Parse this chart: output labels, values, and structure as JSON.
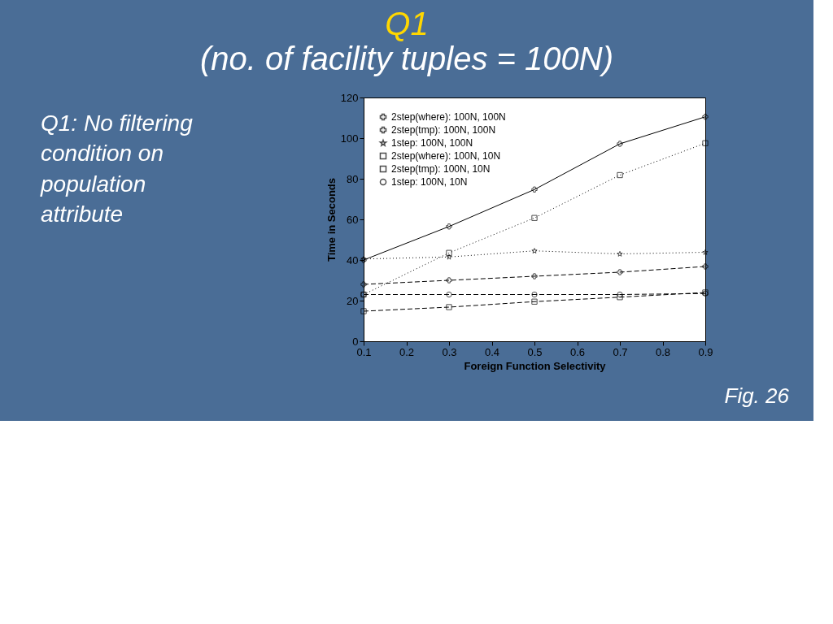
{
  "chart_data": {
    "type": "line",
    "title": "Q1",
    "subtitle": "(no. of facility tuples = 100N)",
    "xlabel": "Foreign Function Selectivity",
    "ylabel": "Time in Seconds",
    "x": [
      0.1,
      0.3,
      0.5,
      0.7,
      0.9
    ],
    "series": [
      {
        "name": "2step(where): 100N, 100N",
        "color": "#000000",
        "marker": "cross",
        "line_style": "solid",
        "values": [
          40,
          56.5,
          74.7,
          97.2,
          110.5
        ]
      },
      {
        "name": "2step(tmp): 100N, 100N",
        "color": "#000000",
        "marker": "cross",
        "line_style": "dashed",
        "values": [
          28,
          30,
          32,
          34,
          36.8
        ]
      },
      {
        "name": "1step: 100N, 100N",
        "color": "#000000",
        "marker": "star",
        "line_style": "dotted",
        "values": [
          40.5,
          41.5,
          44.5,
          43,
          43.8
        ]
      },
      {
        "name": "2step(where): 100N, 10N",
        "color": "#000000",
        "marker": "square",
        "line_style": "dotted",
        "values": [
          23,
          43.5,
          60.7,
          81.8,
          97.5
        ]
      },
      {
        "name": "2step(tmp): 100N, 10N",
        "color": "#000000",
        "marker": "square",
        "line_style": "dashed",
        "values": [
          14.8,
          16.8,
          19.5,
          21.7,
          24
        ]
      },
      {
        "name": "1step: 100N, 10N",
        "color": "#000000",
        "marker": "circle",
        "line_style": "dashed",
        "values": [
          23,
          23,
          23,
          23,
          23.5
        ]
      }
    ],
    "xlim": [
      0.1,
      0.9
    ],
    "xticks": [
      0.1,
      0.2,
      0.3,
      0.4,
      0.5,
      0.6,
      0.7,
      0.8,
      0.9
    ],
    "ylim": [
      0,
      120
    ],
    "yticks": [
      0,
      20,
      40,
      60,
      80,
      100,
      120
    ],
    "grid": false,
    "legend": "top left",
    "annotations": [
      "Q1: No filtering condition on population attribute",
      "Fig. 26"
    ]
  }
}
